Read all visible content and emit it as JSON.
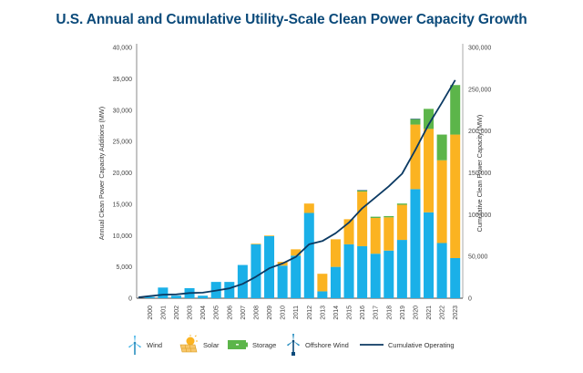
{
  "chart_data": {
    "type": "bar",
    "stacked": true,
    "title": "U.S. Annual and Cumulative Utility-Scale Clean Power Capacity Growth",
    "xlabel": "",
    "ylabel": "Annual Clean Power Capacity Additions (MW)",
    "y2label": "Cumulative Clean Power Capacity (MW)",
    "ylim": [
      0,
      40000
    ],
    "y2lim": [
      0,
      300000
    ],
    "yticks": [
      "0",
      "5,000",
      "10,000",
      "15,000",
      "20,000",
      "25,000",
      "30,000",
      "35,000",
      "40,000"
    ],
    "y2ticks": [
      "0",
      "50,000",
      "100,000",
      "150,000",
      "200,000",
      "250,000",
      "300,000"
    ],
    "grid": false,
    "legend_position": "bottom",
    "categories": [
      "2000",
      "2001",
      "2002",
      "2003",
      "2004",
      "2005",
      "2006",
      "2007",
      "2008",
      "2009",
      "2010",
      "2011",
      "2012",
      "2013",
      "2014",
      "2015",
      "2016",
      "2017",
      "2018",
      "2019",
      "2020",
      "2021",
      "2022",
      "2023"
    ],
    "series": [
      {
        "name": "Wind",
        "type": "bar",
        "axis": "left",
        "color": "#1ab0e8",
        "values": [
          200,
          1700,
          400,
          1600,
          400,
          2600,
          2600,
          5300,
          8600,
          9900,
          5200,
          6800,
          13600,
          1100,
          5000,
          8600,
          8300,
          7100,
          7600,
          9300,
          17400,
          13700,
          8800,
          6400
        ]
      },
      {
        "name": "Solar",
        "type": "bar",
        "axis": "left",
        "color": "#fbb321",
        "values": [
          0,
          0,
          0,
          0,
          0,
          0,
          0,
          0,
          100,
          100,
          600,
          1000,
          1500,
          2800,
          4400,
          4000,
          8700,
          5700,
          5300,
          5600,
          10300,
          13300,
          13200,
          19700
        ]
      },
      {
        "name": "Storage",
        "type": "bar",
        "axis": "left",
        "color": "#5cb54a",
        "values": [
          0,
          0,
          0,
          0,
          0,
          0,
          0,
          0,
          0,
          0,
          0,
          0,
          0,
          0,
          0,
          0,
          200,
          200,
          200,
          200,
          900,
          3200,
          4100,
          7900
        ]
      },
      {
        "name": "Offshore Wind",
        "type": "bar",
        "axis": "left",
        "color": "#0b4a7a",
        "values": [
          0,
          0,
          0,
          0,
          0,
          0,
          0,
          0,
          0,
          0,
          0,
          0,
          0,
          0,
          0,
          0,
          30,
          0,
          0,
          0,
          12,
          0,
          0,
          0
        ]
      },
      {
        "name": "Cumulative Operating",
        "type": "line",
        "axis": "right",
        "color": "#0b3a63",
        "values": [
          2500,
          4200,
          4600,
          6200,
          6600,
          9200,
          11800,
          17100,
          25800,
          35800,
          41600,
          49400,
          64500,
          68400,
          77800,
          90400,
          107600,
          120700,
          133800,
          148900,
          177500,
          207700,
          233800,
          261000
        ]
      }
    ]
  },
  "legend": [
    {
      "label": "Wind",
      "icon": "wind-turbine-icon"
    },
    {
      "label": "Solar",
      "icon": "solar-panel-icon"
    },
    {
      "label": "Storage",
      "icon": "battery-icon"
    },
    {
      "label": "Offshore Wind",
      "icon": "offshore-wind-turbine-icon"
    },
    {
      "label": "Cumulative Operating",
      "icon": "line-icon"
    }
  ]
}
